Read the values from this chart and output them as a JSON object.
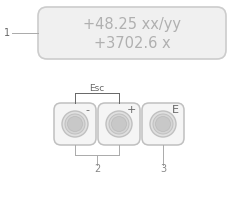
{
  "display_text_line1": "+48.25 xx/yy",
  "display_text_line2": "+3702.6 x",
  "display_color": "#b0b0b0",
  "display_box_facecolor": "#f0f0f0",
  "display_box_edgecolor": "#cccccc",
  "label1_text": "1",
  "esc_label": "Esc",
  "btn_labels": [
    "-",
    "+",
    "E"
  ],
  "btn_numbers": [
    "2",
    "3"
  ],
  "bg_color": "#ffffff",
  "btn_face_color": "#e0e0e0",
  "btn_edge_color": "#c0c0c0",
  "btn_inner_color1": "#d4d4d4",
  "btn_inner_color2": "#c8c8c8",
  "text_color_dark": "#666666",
  "text_color_gray": "#aaaaaa",
  "num_color": "#888888"
}
